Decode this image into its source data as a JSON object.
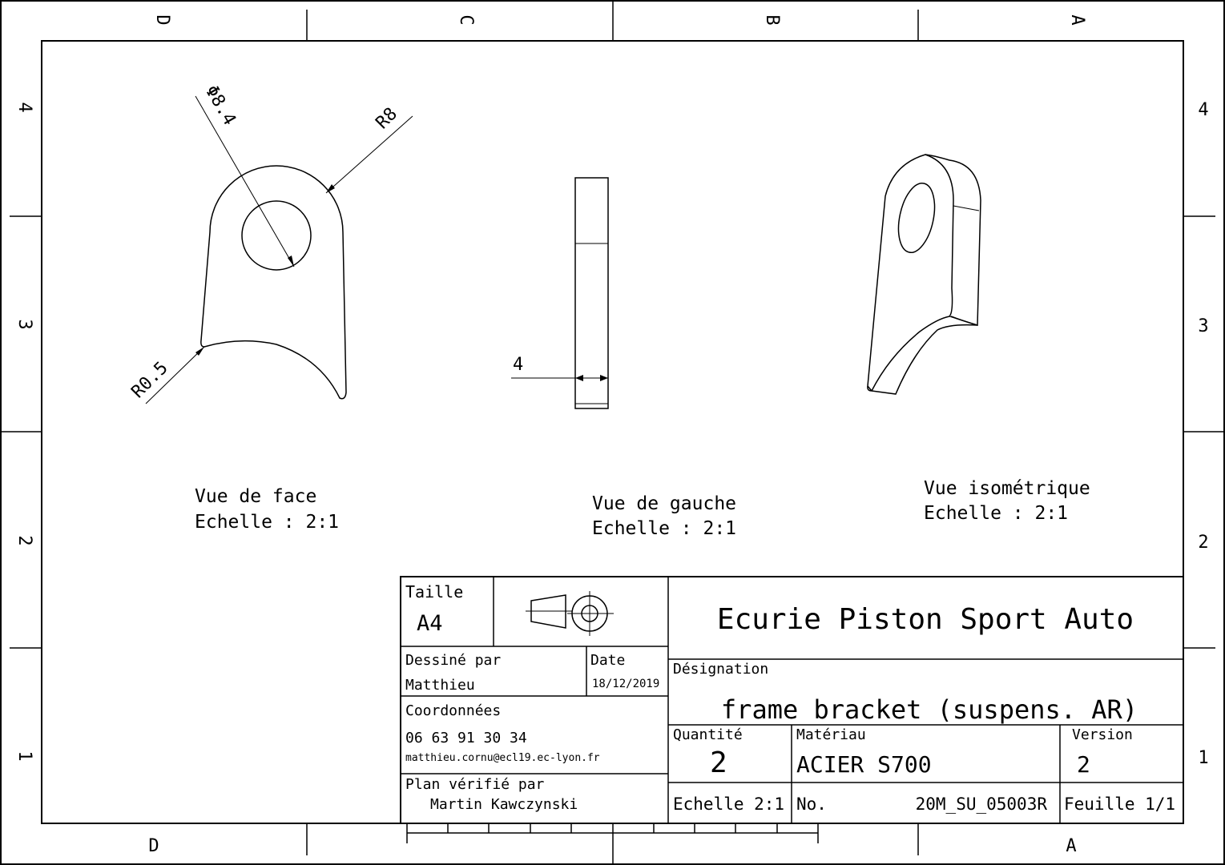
{
  "zones": {
    "top": [
      "D",
      "C",
      "B",
      "A"
    ],
    "bottom": [
      "D",
      "A"
    ],
    "left": [
      "4",
      "3",
      "2",
      "1"
    ],
    "right": [
      "4",
      "3",
      "2",
      "1"
    ]
  },
  "views": {
    "front": {
      "title": "Vue de face",
      "scale_label": "Echelle :  2:1",
      "dim_hole": "Φ8.4",
      "dim_radius": "R8",
      "dim_fillet": "R0.5"
    },
    "left": {
      "title": "Vue de gauche",
      "scale_label": "Echelle :  2:1",
      "dim_thickness": "4"
    },
    "iso": {
      "title": "Vue isométrique",
      "scale_label": "Echelle :  2:1"
    }
  },
  "title_block": {
    "size_label": "Taille",
    "size_value": "A4",
    "projection_icon": "first-angle-projection-icon",
    "drawn_by_label": "Dessiné par",
    "drawn_by_value": "Matthieu",
    "date_label": "Date",
    "date_value": "18/12/2019",
    "contact_label": "Coordonnées",
    "phone": "06 63 91 30 34",
    "email": "matthieu.cornu@ecl19.ec-lyon.fr",
    "checked_label": "Plan vérifié par",
    "checked_value": "Martin Kawczynski",
    "company": "Ecurie Piston Sport Auto",
    "designation_label": "Désignation",
    "designation_value": "frame bracket (suspens. AR)",
    "quantity_label": "Quantité",
    "quantity_value": "2",
    "material_label": "Matériau",
    "material_value": "ACIER S700",
    "version_label": "Version",
    "version_value": "2",
    "scale_value": "Echelle 2:1",
    "number_label": "No.",
    "number_value": "20M_SU_05003R",
    "sheet_value": "Feuille 1/1"
  }
}
